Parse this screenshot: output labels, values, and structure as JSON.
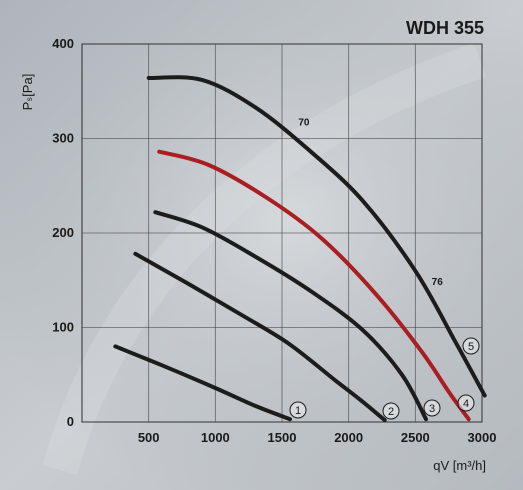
{
  "chart_data": {
    "type": "line",
    "title": "WDH 355",
    "xlabel": "qV [m³/h]",
    "ylabel": "Pₛ[Pa]",
    "xlim": [
      0,
      3000
    ],
    "ylim": [
      0,
      400
    ],
    "xticks": [
      500,
      1000,
      1500,
      2000,
      2500,
      3000
    ],
    "yticks": [
      0,
      100,
      200,
      300,
      400
    ],
    "grid": true,
    "colors": {
      "default": "#1c1c1c",
      "highlight": "#a81e22"
    },
    "series": [
      {
        "label": "1",
        "color": "#1c1c1c",
        "points": [
          [
            250,
            80
          ],
          [
            600,
            60
          ],
          [
            1000,
            36
          ],
          [
            1300,
            17
          ],
          [
            1560,
            3
          ]
        ]
      },
      {
        "label": "2",
        "color": "#1c1c1c",
        "points": [
          [
            400,
            178
          ],
          [
            800,
            146
          ],
          [
            1200,
            113
          ],
          [
            1550,
            83
          ],
          [
            1900,
            44
          ],
          [
            2100,
            22
          ],
          [
            2270,
            2
          ]
        ]
      },
      {
        "label": "3",
        "color": "#1c1c1c",
        "points": [
          [
            550,
            222
          ],
          [
            900,
            206
          ],
          [
            1300,
            175
          ],
          [
            1700,
            140
          ],
          [
            2100,
            98
          ],
          [
            2400,
            50
          ],
          [
            2580,
            3
          ]
        ]
      },
      {
        "label": "4",
        "color": "#a81e22",
        "points": [
          [
            580,
            286
          ],
          [
            950,
            272
          ],
          [
            1400,
            236
          ],
          [
            1800,
            194
          ],
          [
            2200,
            136
          ],
          [
            2550,
            74
          ],
          [
            2760,
            30
          ],
          [
            2900,
            3
          ]
        ]
      },
      {
        "label": "5",
        "color": "#1c1c1c",
        "points": [
          [
            500,
            364
          ],
          [
            900,
            362
          ],
          [
            1300,
            333
          ],
          [
            1700,
            288
          ],
          [
            2100,
            235
          ],
          [
            2500,
            160
          ],
          [
            2800,
            85
          ],
          [
            3020,
            28
          ]
        ]
      }
    ],
    "annotations": [
      {
        "text": "70",
        "x": 1600,
        "y": 314
      },
      {
        "text": "76",
        "x": 2600,
        "y": 145
      }
    ]
  }
}
